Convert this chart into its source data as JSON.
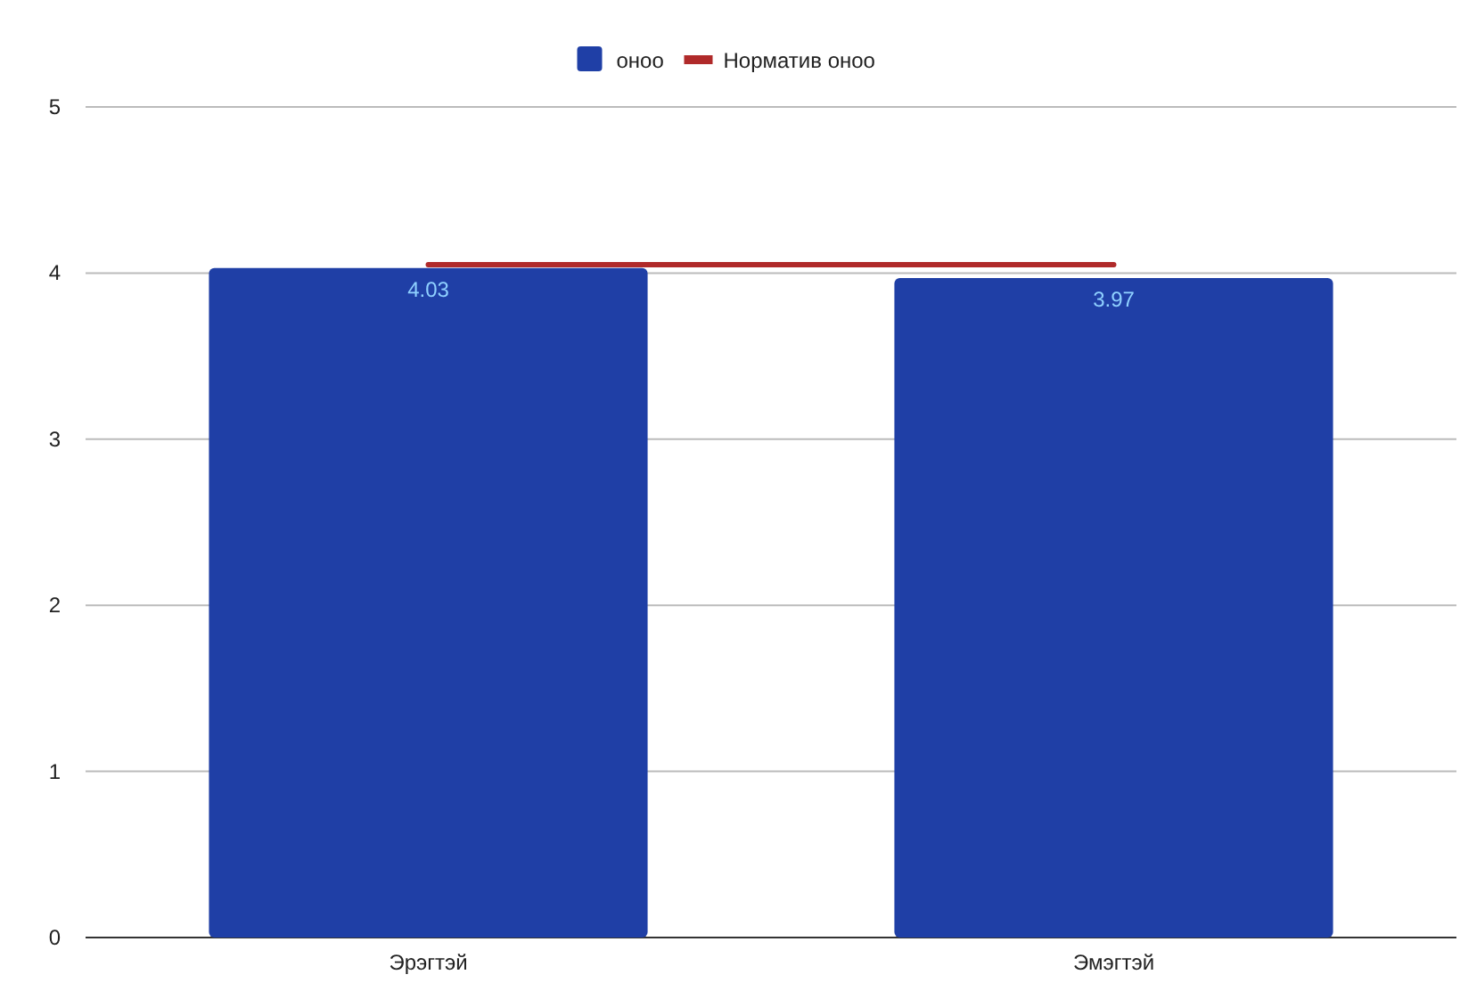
{
  "chart_data": {
    "type": "bar",
    "categories": [
      "Эрэгтэй",
      "Эмэгтэй"
    ],
    "series": [
      {
        "name": "оноо",
        "color": "#1f3fa6",
        "values": [
          4.03,
          3.97
        ],
        "value_labels": [
          "4.03",
          "3.97"
        ]
      },
      {
        "name": "Норматив оноо",
        "type": "line",
        "color": "#b02a2a",
        "values": [
          4.05,
          4.05
        ]
      }
    ],
    "ylim": [
      0,
      5
    ],
    "yticks": [
      0,
      1,
      2,
      3,
      4,
      5
    ],
    "grid": "y",
    "legend": "top",
    "marker": "none"
  }
}
